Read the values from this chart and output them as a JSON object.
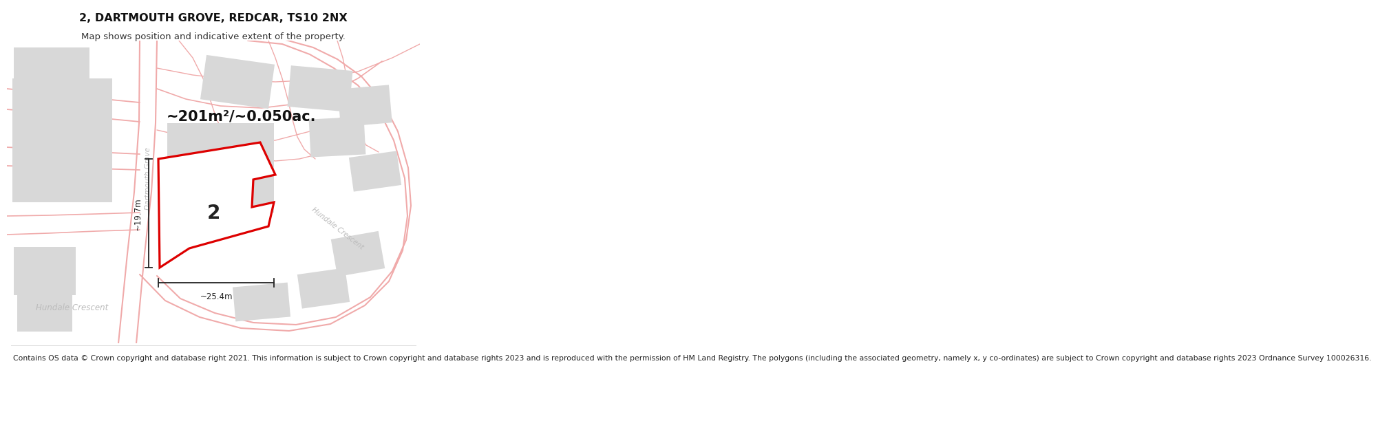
{
  "title": "2, DARTMOUTH GROVE, REDCAR, TS10 2NX",
  "subtitle": "Map shows position and indicative extent of the property.",
  "footer": "Contains OS data © Crown copyright and database right 2021. This information is subject to Crown copyright and database rights 2023 and is reproduced with the permission of HM Land Registry. The polygons (including the associated geometry, namely x, y co-ordinates) are subject to Crown copyright and database rights 2023 Ordnance Survey 100026316.",
  "area_label": "~201m²/~0.050ac.",
  "number_label": "2",
  "dim_h": "~19.7m",
  "dim_w": "~25.4m",
  "road_label_dartmouth": "Dartmouth Grove",
  "road_label_hundale_diag": "Hundale Crescent",
  "road_label_hundale_horiz": "Hundale Crescent",
  "bg_color": "#ffffff",
  "map_bg": "#ffffff",
  "building_color": "#d8d8d8",
  "plot_fill": "#ffffff",
  "plot_edge": "#dd0000",
  "road_color": "#f0aaaa",
  "dim_color": "#222222",
  "road_label_color": "#bbbbbb",
  "title_fontsize": 11.5,
  "subtitle_fontsize": 9.5,
  "area_fontsize": 15,
  "number_fontsize": 20,
  "footer_fontsize": 7.8
}
